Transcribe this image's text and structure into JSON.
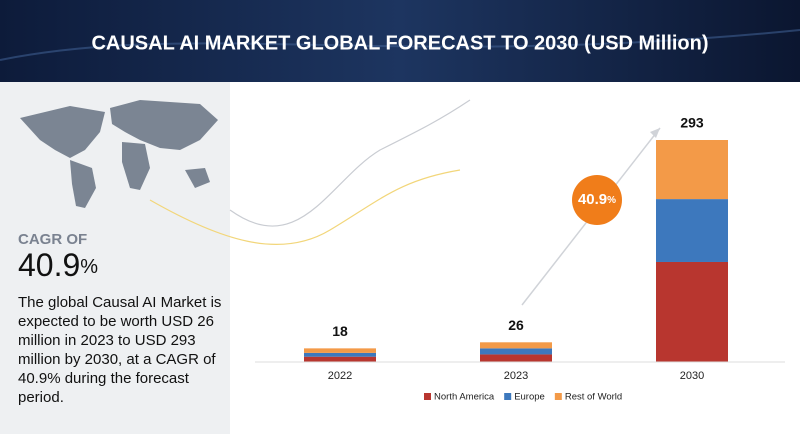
{
  "chart_data": {
    "type": "stacked-bar",
    "title": "CAUSAL AI MARKET GLOBAL FORECAST TO 2030 (USD Million)",
    "categories": [
      "2022",
      "2023",
      "2030"
    ],
    "series": [
      {
        "name": "North America",
        "color": "#b8362f",
        "values": [
          7,
          10,
          132
        ]
      },
      {
        "name": "Europe",
        "color": "#3d78bd",
        "values": [
          5,
          8,
          83
        ]
      },
      {
        "name": "Rest of World",
        "color": "#f39a48",
        "values": [
          6,
          8,
          78
        ]
      }
    ],
    "totals": [
      18,
      26,
      293
    ],
    "growth_label": {
      "value": "40.9",
      "unit": "%"
    },
    "growth_color": "#f07d1a"
  },
  "sidebar": {
    "cagr_title": "CAGR OF",
    "cagr_value": "40.9",
    "cagr_unit": "%",
    "description": "The global Causal AI Market is expected to be worth USD 26 million in 2023 to USD 293 million by 2030, at a CAGR of 40.9% during the forecast period."
  }
}
